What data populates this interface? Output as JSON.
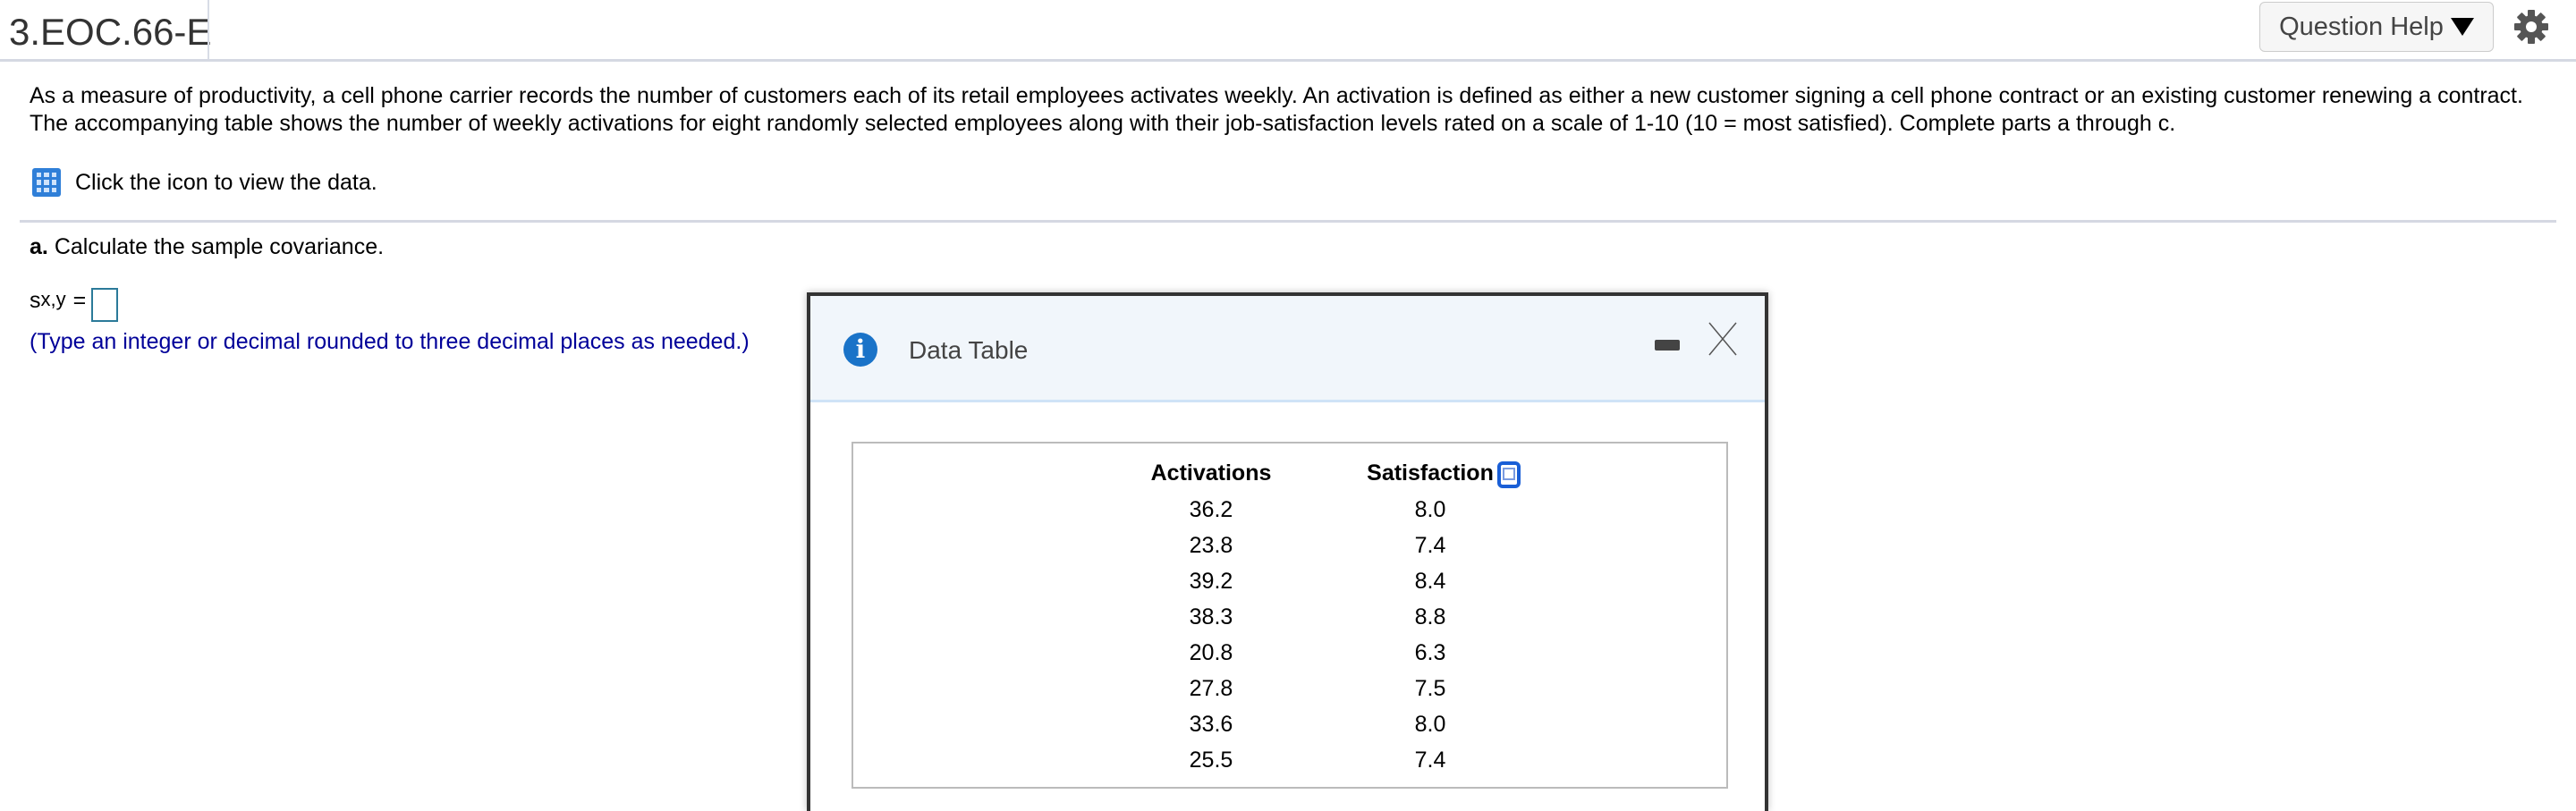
{
  "header": {
    "title": "3.EOC.66-E",
    "help_label": "Question Help"
  },
  "problem": {
    "text": "As a measure of productivity, a cell phone carrier records the number of customers each of its retail employees activates weekly. An activation is defined as either a new customer signing a cell phone contract or an existing customer renewing a contract. The accompanying table shows the number of weekly activations for eight randomly selected employees along with their job-satisfaction levels rated on a scale of 1-10 (10 = most satisfied). Complete parts a through c.",
    "data_link": "Click the icon to view the data."
  },
  "part_a": {
    "label": "a.",
    "prompt": "Calculate the sample covariance.",
    "symbol": "s",
    "subscript": "x,y",
    "equals": "=",
    "answer_value": "",
    "hint": "(Type an integer or decimal rounded to three decimal places as needed.)"
  },
  "dialog": {
    "title": "Data Table",
    "columns": [
      "Activations",
      "Satisfaction"
    ],
    "rows": [
      [
        "36.2",
        "8.0"
      ],
      [
        "23.8",
        "7.4"
      ],
      [
        "39.2",
        "8.4"
      ],
      [
        "38.3",
        "8.8"
      ],
      [
        "20.8",
        "6.3"
      ],
      [
        "27.8",
        "7.5"
      ],
      [
        "33.6",
        "8.0"
      ],
      [
        "25.5",
        "7.4"
      ]
    ]
  },
  "colors": {
    "hint": "#000099",
    "info": "#1a73c8",
    "accent": "#2f7fd8"
  }
}
